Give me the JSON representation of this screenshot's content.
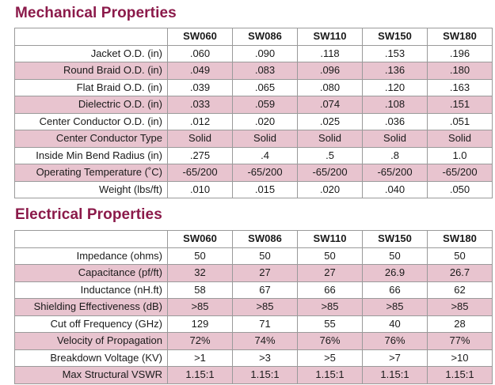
{
  "mechanical": {
    "title": "Mechanical Properties",
    "headers": [
      "SW060",
      "SW086",
      "SW110",
      "SW150",
      "SW180"
    ],
    "rows": [
      {
        "label": "Jacket O.D. (in)",
        "values": [
          ".060",
          ".090",
          ".118",
          ".153",
          ".196"
        ]
      },
      {
        "label": "Round Braid O.D. (in)",
        "values": [
          ".049",
          ".083",
          ".096",
          ".136",
          ".180"
        ]
      },
      {
        "label": "Flat Braid O.D. (in)",
        "values": [
          ".039",
          ".065",
          ".080",
          ".120",
          ".163"
        ]
      },
      {
        "label": "Dielectric O.D. (in)",
        "values": [
          ".033",
          ".059",
          ".074",
          ".108",
          ".151"
        ]
      },
      {
        "label": "Center Conductor O.D. (in)",
        "values": [
          ".012",
          ".020",
          ".025",
          ".036",
          ".051"
        ]
      },
      {
        "label": "Center Conductor Type",
        "values": [
          "Solid",
          "Solid",
          "Solid",
          "Solid",
          "Solid"
        ]
      },
      {
        "label": "Inside Min Bend Radius (in)",
        "values": [
          ".275",
          ".4",
          ".5",
          ".8",
          "1.0"
        ]
      },
      {
        "label": "Operating Temperature (˚C)",
        "values": [
          "-65/200",
          "-65/200",
          "-65/200",
          "-65/200",
          "-65/200"
        ]
      },
      {
        "label": "Weight (lbs/ft)",
        "values": [
          ".010",
          ".015",
          ".020",
          ".040",
          ".050"
        ]
      }
    ]
  },
  "electrical": {
    "title": "Electrical Properties",
    "headers": [
      "SW060",
      "SW086",
      "SW110",
      "SW150",
      "SW180"
    ],
    "rows": [
      {
        "label": "Impedance (ohms)",
        "values": [
          "50",
          "50",
          "50",
          "50",
          "50"
        ]
      },
      {
        "label": "Capacitance (pf/ft)",
        "values": [
          "32",
          "27",
          "27",
          "26.9",
          "26.7"
        ]
      },
      {
        "label": "Inductance (nH.ft)",
        "values": [
          "58",
          "67",
          "66",
          "66",
          "62"
        ]
      },
      {
        "label": "Shielding  Effectiveness (dB)",
        "values": [
          ">85",
          ">85",
          ">85",
          ">85",
          ">85"
        ]
      },
      {
        "label": "Cut off Frequency (GHz)",
        "values": [
          "129",
          "71",
          "55",
          "40",
          "28"
        ]
      },
      {
        "label": "Velocity of Propagation",
        "values": [
          "72%",
          "74%",
          "76%",
          "76%",
          "77%"
        ]
      },
      {
        "label": "Breakdown Voltage (KV)",
        "values": [
          ">1",
          ">3",
          ">5",
          ">7",
          ">10"
        ]
      },
      {
        "label": "Max Structural VSWR",
        "values": [
          "1.15:1",
          "1.15:1",
          "1.15:1",
          "1.15:1",
          "1.15:1"
        ]
      }
    ]
  },
  "colors": {
    "title": "#8b1a4a",
    "row_shade": "#e8c4cf",
    "border": "#9a9a9a"
  }
}
